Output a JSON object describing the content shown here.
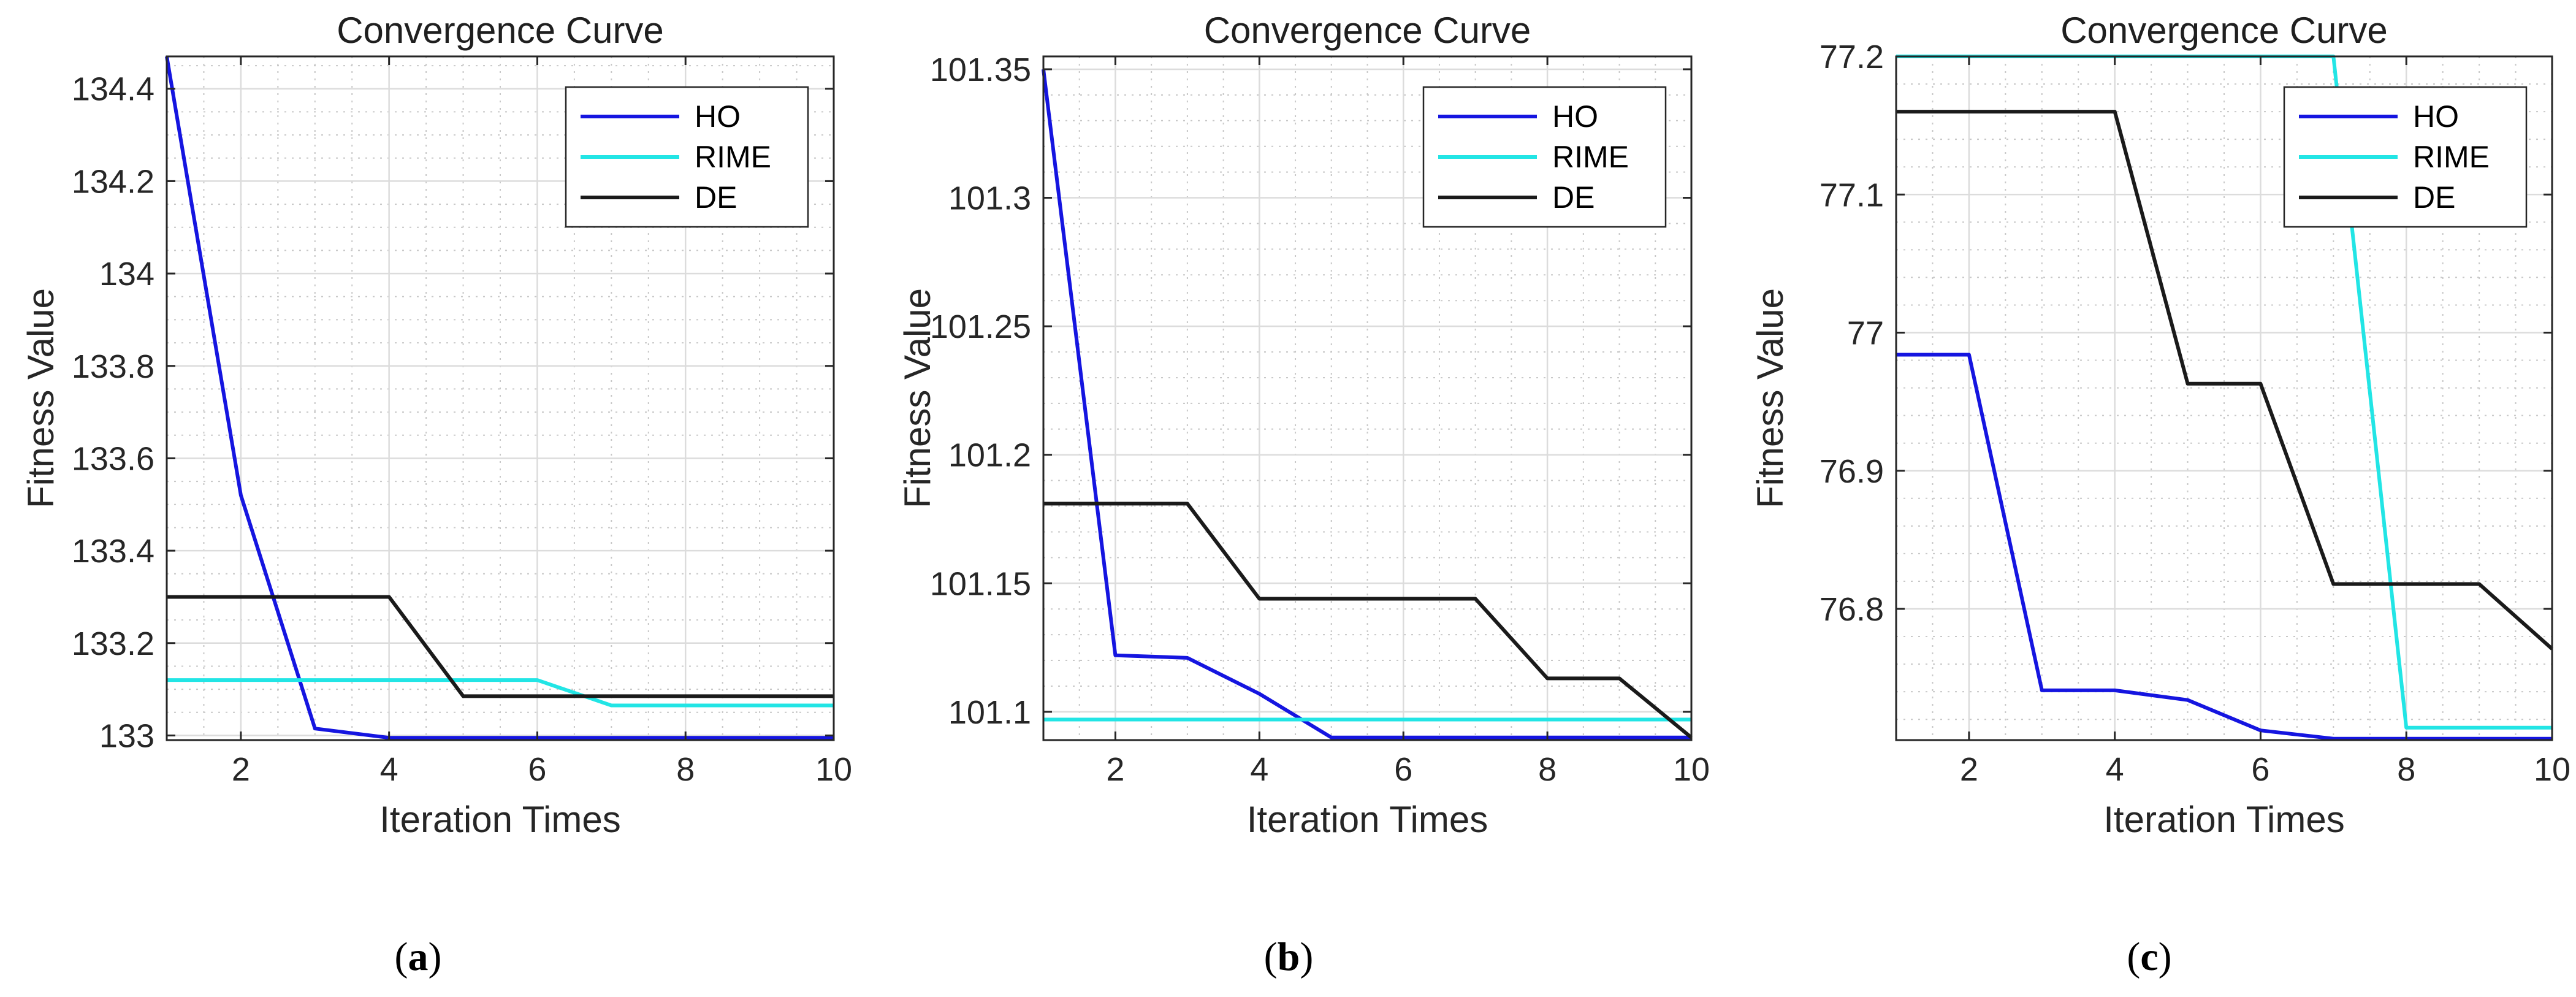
{
  "chart_data": [
    {
      "type": "line",
      "panel_label": "a",
      "title": "Convergence Curve",
      "xlabel": "Iteration Times",
      "ylabel": "Fitness Value",
      "xlim": [
        1,
        10
      ],
      "ylim": [
        132.99,
        134.47
      ],
      "xticks": [
        2,
        4,
        6,
        8,
        10
      ],
      "yticks": [
        133,
        133.2,
        133.4,
        133.6,
        133.8,
        134,
        134.2,
        134.4
      ],
      "ytick_labels": [
        "133",
        "133.2",
        "133.4",
        "133.6",
        "133.8",
        "134",
        "134.2",
        "134.4"
      ],
      "minor_yticks": [
        133.05,
        133.1,
        133.15,
        133.25,
        133.3,
        133.35,
        133.45,
        133.5,
        133.55,
        133.65,
        133.7,
        133.75,
        133.85,
        133.9,
        133.95,
        134.05,
        134.1,
        134.15,
        134.25,
        134.3,
        134.35,
        134.45
      ],
      "grid": true,
      "legend_position": "top-right",
      "x": [
        1,
        2,
        3,
        4,
        5,
        6,
        7,
        8,
        9,
        10
      ],
      "series": [
        {
          "name": "HO",
          "color": "#1515e0",
          "values": [
            134.47,
            133.52,
            133.015,
            132.995,
            132.995,
            132.995,
            132.995,
            132.995,
            132.995,
            132.995
          ]
        },
        {
          "name": "RIME",
          "color": "#22e5e5",
          "values": [
            133.12,
            133.12,
            133.12,
            133.12,
            133.12,
            133.12,
            133.065,
            133.065,
            133.065,
            133.065
          ]
        },
        {
          "name": "DE",
          "color": "#1a1a1a",
          "values": [
            133.3,
            133.3,
            133.3,
            133.3,
            133.085,
            133.085,
            133.085,
            133.085,
            133.085,
            133.085
          ]
        }
      ]
    },
    {
      "type": "line",
      "panel_label": "b",
      "title": "Convergence Curve",
      "xlabel": "Iteration Times",
      "ylabel": "Fitness Value",
      "xlim": [
        1,
        10
      ],
      "ylim": [
        101.089,
        101.355
      ],
      "xticks": [
        2,
        4,
        6,
        8,
        10
      ],
      "yticks": [
        101.1,
        101.15,
        101.2,
        101.25,
        101.3,
        101.35
      ],
      "ytick_labels": [
        "101.1",
        "101.15",
        "101.2",
        "101.25",
        "101.3",
        "101.35"
      ],
      "minor_yticks": [
        101.11,
        101.12,
        101.13,
        101.14,
        101.16,
        101.17,
        101.18,
        101.19,
        101.21,
        101.22,
        101.23,
        101.24,
        101.26,
        101.27,
        101.28,
        101.29,
        101.31,
        101.32,
        101.33,
        101.34
      ],
      "grid": true,
      "legend_position": "top-right",
      "x": [
        1,
        2,
        3,
        4,
        5,
        6,
        7,
        8,
        9,
        10
      ],
      "series": [
        {
          "name": "HO",
          "color": "#1515e0",
          "values": [
            101.35,
            101.122,
            101.121,
            101.107,
            101.09,
            101.09,
            101.09,
            101.09,
            101.09,
            101.09
          ]
        },
        {
          "name": "RIME",
          "color": "#22e5e5",
          "values": [
            101.097,
            101.097,
            101.097,
            101.097,
            101.097,
            101.097,
            101.097,
            101.097,
            101.097,
            101.097
          ]
        },
        {
          "name": "DE",
          "color": "#1a1a1a",
          "values": [
            101.181,
            101.181,
            101.181,
            101.144,
            101.144,
            101.144,
            101.144,
            101.113,
            101.113,
            101.09
          ]
        }
      ]
    },
    {
      "type": "line",
      "panel_label": "c",
      "title": "Convergence Curve",
      "xlabel": "Iteration Times",
      "ylabel": "Fitness Value",
      "xlim": [
        1,
        10
      ],
      "ylim": [
        76.705,
        77.2
      ],
      "xticks": [
        2,
        4,
        6,
        8,
        10
      ],
      "yticks": [
        76.8,
        76.9,
        77,
        77.1,
        77.2
      ],
      "ytick_labels": [
        "76.8",
        "76.9",
        "77",
        "77.1",
        "77.2"
      ],
      "minor_yticks": [
        76.72,
        76.74,
        76.76,
        76.78,
        76.82,
        76.84,
        76.86,
        76.88,
        76.92,
        76.94,
        76.96,
        76.98,
        77.02,
        77.04,
        77.06,
        77.08,
        77.12,
        77.14,
        77.16,
        77.18
      ],
      "grid": true,
      "legend_position": "top-right",
      "x": [
        1,
        2,
        3,
        4,
        5,
        6,
        7,
        8,
        9,
        10
      ],
      "series": [
        {
          "name": "HO",
          "color": "#1515e0",
          "values": [
            76.984,
            76.984,
            76.741,
            76.741,
            76.734,
            76.712,
            76.706,
            76.706,
            76.706,
            76.706
          ]
        },
        {
          "name": "RIME",
          "color": "#22e5e5",
          "values": [
            77.2,
            77.2,
            77.2,
            77.2,
            77.2,
            77.2,
            77.2,
            76.714,
            76.714,
            76.714
          ]
        },
        {
          "name": "DE",
          "color": "#1a1a1a",
          "values": [
            77.16,
            77.16,
            77.16,
            77.16,
            76.963,
            76.963,
            76.818,
            76.818,
            76.818,
            76.771
          ]
        }
      ]
    }
  ]
}
